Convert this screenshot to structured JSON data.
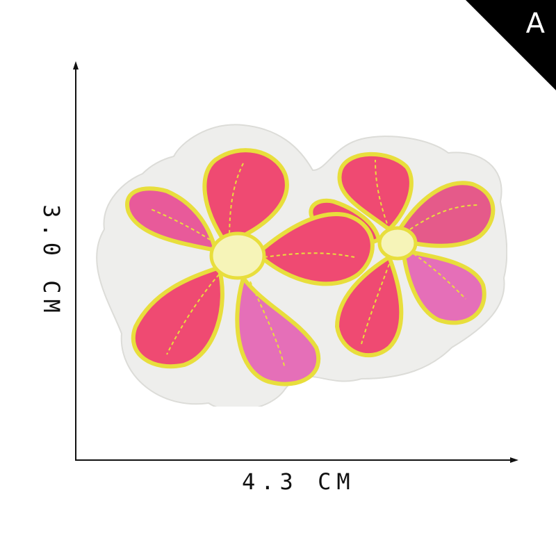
{
  "badge": {
    "letter": "A"
  },
  "dimensions": {
    "width_label": "4.3 CM",
    "height_label": "3.0 CM"
  },
  "product": {
    "description_icon": "embroidered-two-flower-patch",
    "colors": {
      "felt_backing": "#eeeeec",
      "border_yellow": "#e8de3c",
      "petal_pink": "#ef4a72",
      "petal_light_pink": "#e56fb8",
      "center_cream": "#f6f4b8"
    }
  }
}
